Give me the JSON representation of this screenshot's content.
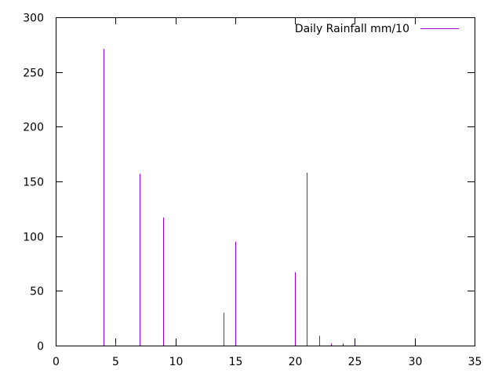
{
  "chart_data": {
    "type": "bar",
    "style": "impulses",
    "title": "",
    "xlabel": "",
    "ylabel": "",
    "xlim": [
      0,
      35
    ],
    "ylim": [
      0,
      300
    ],
    "x_ticks": [
      0,
      5,
      10,
      15,
      20,
      25,
      30,
      35
    ],
    "y_ticks": [
      0,
      50,
      100,
      150,
      200,
      250,
      300
    ],
    "grid": false,
    "legend_position": "top-right",
    "colors": {
      "series": "#9400d3",
      "axis": "#000000",
      "background": "#ffffff"
    },
    "series": [
      {
        "name": "Daily Rainfall mm/10",
        "points": [
          {
            "x": 4,
            "y": 271
          },
          {
            "x": 5,
            "y": 2
          },
          {
            "x": 7,
            "y": 157
          },
          {
            "x": 9,
            "y": 117
          },
          {
            "x": 14,
            "y": 30
          },
          {
            "x": 15,
            "y": 95
          },
          {
            "x": 20,
            "y": 67
          },
          {
            "x": 21,
            "y": 158
          },
          {
            "x": 22,
            "y": 9
          },
          {
            "x": 23,
            "y": 2
          },
          {
            "x": 24,
            "y": 2
          },
          {
            "x": 25,
            "y": 1
          }
        ]
      }
    ]
  }
}
